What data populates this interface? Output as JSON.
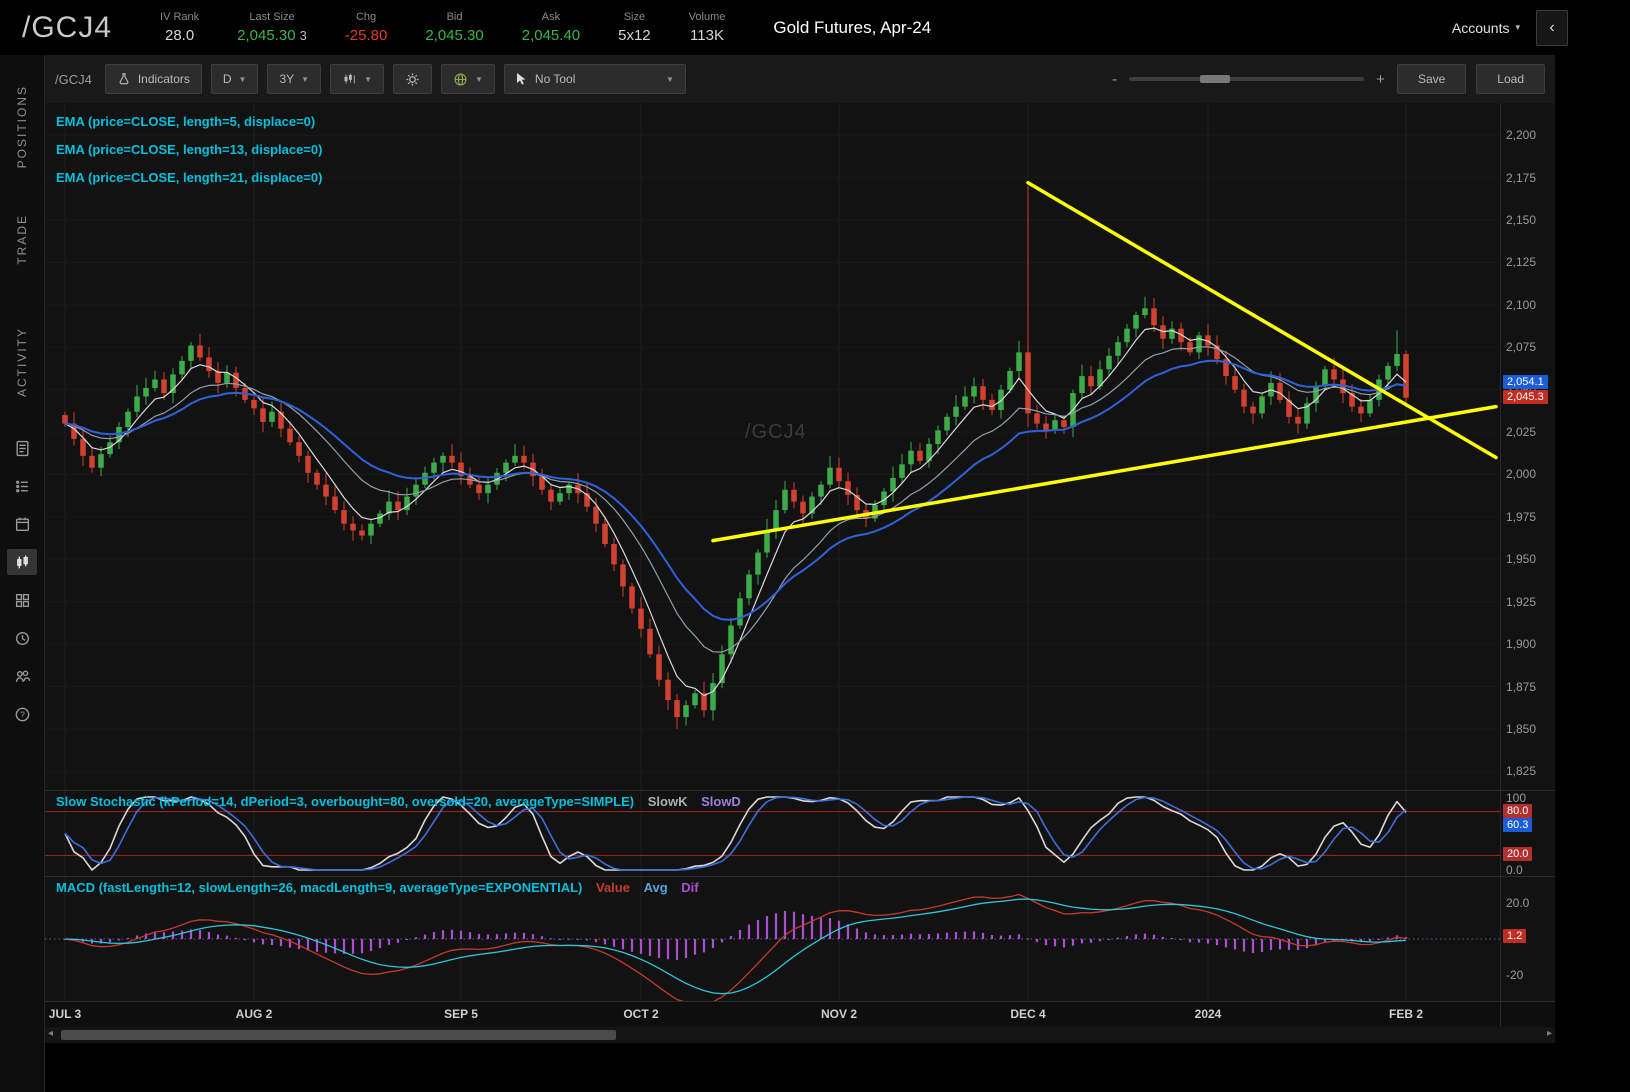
{
  "colors": {
    "up": "#3dab4a",
    "down": "#d2402f",
    "accent_cyan": "#00c0dd",
    "trendline": "#ffff00",
    "ema5": "#d9d9d9",
    "ema13": "#8fa0ab",
    "ema21": "#2e62d9",
    "slowk": "#d9d9d9",
    "slowd": "#3d6fd9",
    "stoch_band": "#aa2222",
    "macd_value": "#c23b2e",
    "macd_avg": "#2cc6d9",
    "macd_dif": "#a94fd0",
    "grid": "#202020"
  },
  "header": {
    "symbol": "/GCJ4",
    "title": "Gold Futures, Apr-24",
    "accounts_label": "Accounts",
    "stats": [
      {
        "label": "IV Rank",
        "value": "28.0",
        "tone": "plain"
      },
      {
        "label": "Last Size",
        "value": "2,045.30",
        "extra": "3",
        "tone": "green"
      },
      {
        "label": "Chg",
        "value": "-25.80",
        "tone": "red"
      },
      {
        "label": "Bid",
        "value": "2,045.30",
        "tone": "green"
      },
      {
        "label": "Ask",
        "value": "2,045.40",
        "tone": "green"
      },
      {
        "label": "Size",
        "value": "5x12",
        "tone": "plain"
      },
      {
        "label": "Volume",
        "value": "113K",
        "tone": "plain"
      }
    ]
  },
  "sidebar": {
    "tabs": [
      {
        "label": "POSITIONS"
      },
      {
        "label": "TRADE"
      },
      {
        "label": "ACTIVITY"
      }
    ],
    "icons": [
      "report-icon",
      "list-icon",
      "calendar-icon",
      "candlestick-chart-icon",
      "grid-icon",
      "clock-icon",
      "people-icon",
      "help-icon"
    ]
  },
  "toolbar": {
    "symbol_label": "/GCJ4",
    "indicators_label": "Indicators",
    "timeframe": "D",
    "range": "3Y",
    "tool_label": "No Tool",
    "zoom_minus": "-",
    "zoom_plus": "+",
    "save_label": "Save",
    "load_label": "Load"
  },
  "studies": {
    "price_legend": [
      "EMA (price=CLOSE, length=5, displace=0)",
      "EMA (price=CLOSE, length=13, displace=0)",
      "EMA (price=CLOSE, length=21, displace=0)"
    ],
    "stoch_legend": "Slow Stochastic (kPeriod=14, dPeriod=3, overbought=80, oversold=20, averageType=SIMPLE)",
    "stoch_series": [
      "SlowK",
      "SlowD"
    ],
    "macd_legend": "MACD (fastLength=12, slowLength=26, macdLength=9, averageType=EXPONENTIAL)",
    "macd_series": [
      "Value",
      "Avg",
      "Dif"
    ]
  },
  "axis": {
    "price": {
      "badges": [
        {
          "label": "2,054.1",
          "price": 2054.1,
          "color": "#1b5cd8"
        },
        {
          "label": "2,045.3",
          "price": 2045.3,
          "color": "#c22d22"
        }
      ]
    },
    "stoch": {
      "ticks": [
        {
          "v": 100,
          "label": "100"
        },
        {
          "v": 0,
          "label": "0.0"
        }
      ],
      "badges": [
        {
          "v": 80,
          "label": "80.0",
          "color": "#b03030"
        },
        {
          "v": 60.3,
          "label": "60.3",
          "color": "#1b5cd8"
        },
        {
          "v": 20,
          "label": "20.0",
          "color": "#b03030"
        }
      ]
    },
    "macd": {
      "ticks": [
        {
          "v": 20,
          "label": "20.0"
        },
        {
          "v": -20,
          "label": "-20"
        }
      ],
      "badges": [
        {
          "v": 1.2,
          "label": "1.2",
          "color": "#c22d22"
        }
      ]
    }
  },
  "chart_data": {
    "type": "candlestick",
    "symbol": "/GCJ4",
    "timeframe": "D",
    "range_label": "3Y",
    "title": "Gold Futures, Apr-24",
    "y_range": [
      1814,
      2219
    ],
    "y_ticks": [
      2200,
      2175,
      2150,
      2125,
      2100,
      2075,
      2050,
      2025,
      2000,
      1975,
      1950,
      1925,
      1900,
      1875,
      1850,
      1825
    ],
    "x_labels": [
      {
        "label": "JUL 3",
        "i": 0
      },
      {
        "label": "AUG 2",
        "i": 21
      },
      {
        "label": "SEP 5",
        "i": 44
      },
      {
        "label": "OCT 2",
        "i": 64
      },
      {
        "label": "NOV 2",
        "i": 86
      },
      {
        "label": "DEC 4",
        "i": 107
      },
      {
        "label": "2024",
        "i": 127
      },
      {
        "label": "FEB 2",
        "i": 149
      }
    ],
    "open_first": 2035,
    "closes": [
      2030,
      2021,
      2011,
      2004,
      2012,
      2019,
      2028,
      2037,
      2046,
      2051,
      2056,
      2048,
      2059,
      2067,
      2076,
      2069,
      2061,
      2054,
      2060,
      2051,
      2044,
      2039,
      2031,
      2037,
      2027,
      2019,
      2011,
      2001,
      1994,
      1987,
      1979,
      1971,
      1967,
      1964,
      1971,
      1977,
      1984,
      1979,
      1987,
      1994,
      2001,
      2007,
      2011,
      2007,
      1999,
      1994,
      1989,
      1994,
      2001,
      2007,
      2011,
      2007,
      1999,
      1991,
      1984,
      1989,
      1994,
      1989,
      1981,
      1971,
      1959,
      1947,
      1934,
      1921,
      1909,
      1894,
      1879,
      1867,
      1857,
      1864,
      1871,
      1861,
      1877,
      1894,
      1911,
      1927,
      1941,
      1954,
      1967,
      1979,
      1991,
      1984,
      1977,
      1987,
      1994,
      2004,
      1996,
      1988,
      1979,
      1974,
      1982,
      1990,
      1998,
      2006,
      2014,
      2008,
      2018,
      2026,
      2034,
      2040,
      2046,
      2052,
      2044,
      2038,
      2050,
      2061,
      2072,
      2036,
      2030,
      2026,
      2032,
      2028,
      2048,
      2058,
      2052,
      2062,
      2070,
      2078,
      2086,
      2094,
      2098,
      2088,
      2080,
      2086,
      2078,
      2072,
      2082,
      2076,
      2068,
      2058,
      2050,
      2040,
      2036,
      2046,
      2054,
      2044,
      2034,
      2030,
      2042,
      2052,
      2062,
      2056,
      2048,
      2040,
      2036,
      2044,
      2056,
      2064,
      2071,
      2045.3
    ],
    "special_candles": {
      "68": {
        "low": 1850
      },
      "107": {
        "high": 2170,
        "low": 2028
      },
      "148": {
        "high": 2085
      },
      "149": {
        "high": 2073,
        "low": 2040
      }
    },
    "emas": [
      5,
      13,
      21
    ],
    "stochastic": {
      "kPeriod": 14,
      "dPeriod": 3,
      "overbought": 80,
      "oversold": 20,
      "range": [
        0,
        100
      ]
    },
    "macd": {
      "fastLength": 12,
      "slowLength": 26,
      "macdLength": 9,
      "ticks": [
        20,
        -20
      ],
      "range": [
        -34,
        34
      ]
    },
    "trendlines": [
      {
        "i1": 107,
        "p1": 2172,
        "i2": 159,
        "p2": 2010
      },
      {
        "i1": 72,
        "p1": 1961,
        "i2": 159,
        "p2": 2040
      }
    ],
    "last_price": 2045.3
  }
}
